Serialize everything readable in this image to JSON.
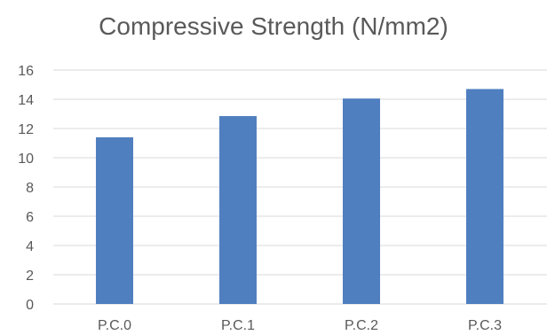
{
  "chart_data": {
    "type": "bar",
    "title": "Compressive Strength (N/mm2)",
    "categories": [
      "P.C.0",
      "P.C.1",
      "P.C.2",
      "P.C.3"
    ],
    "values": [
      11.4,
      12.85,
      14.05,
      14.7
    ],
    "ylim": [
      0,
      16
    ],
    "yticks": [
      0,
      2,
      4,
      6,
      8,
      10,
      12,
      14,
      16
    ],
    "grid": true,
    "legend": "none",
    "colors": {
      "bar": "#4f7fbf",
      "grid": "#d9d9d9",
      "text": "#595959"
    }
  }
}
